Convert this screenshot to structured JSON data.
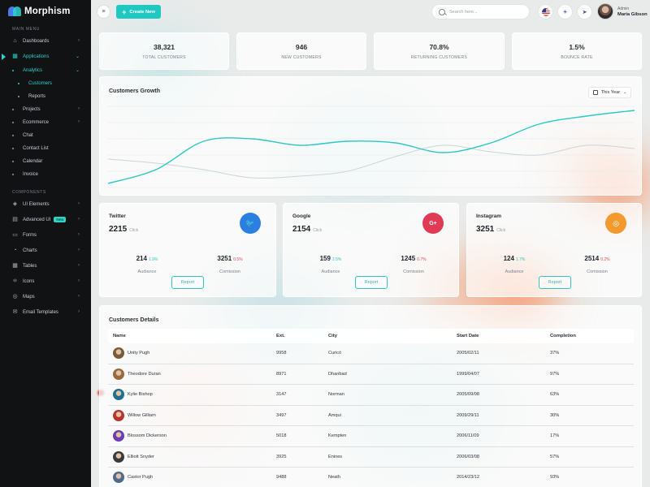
{
  "app": {
    "name": "Morphism"
  },
  "sidebar": {
    "sections": {
      "main": "MAIN MENU",
      "components": "COMPONENTS"
    },
    "items": [
      {
        "label": "Dashboards",
        "icon": "home-icon"
      },
      {
        "label": "Applications",
        "icon": "grid-icon"
      },
      {
        "label": "Projects"
      },
      {
        "label": "Ecommerce"
      },
      {
        "label": "Chat"
      },
      {
        "label": "Contact List"
      },
      {
        "label": "Calendar"
      },
      {
        "label": "Invoice"
      }
    ],
    "analytics": {
      "label": "Analytics",
      "sub": [
        "Customers",
        "Reports"
      ]
    },
    "components": [
      {
        "label": "UI Elements",
        "icon": "layers-icon"
      },
      {
        "label": "Advanced UI",
        "icon": "archive-icon",
        "badge": "New"
      },
      {
        "label": "Forms",
        "icon": "form-icon"
      },
      {
        "label": "Charts",
        "icon": "chart-icon"
      },
      {
        "label": "Tables",
        "icon": "table-icon"
      },
      {
        "label": "Icons",
        "icon": "atom-icon"
      },
      {
        "label": "Maps",
        "icon": "map-icon"
      },
      {
        "label": "Email Templates",
        "icon": "mail-icon"
      }
    ]
  },
  "topbar": {
    "create_label": "Create New",
    "search_placeholder": "Search here...",
    "user_role": "Admin",
    "user_name": "Maria Gibson"
  },
  "stats": [
    {
      "value": "38,321",
      "label": "TOTAL CUSTOMERS"
    },
    {
      "value": "946",
      "label": "NEW CUSTOMERS"
    },
    {
      "value": "70.8%",
      "label": "RETURNING CUSTOMERS"
    },
    {
      "value": "1.5%",
      "label": "BOUNCE RATE"
    }
  ],
  "growth": {
    "title": "Customers Growth",
    "period": "This Year",
    "colors": {
      "primary": "#2ec8c4",
      "secondary": "#c9d6d5"
    }
  },
  "chart_data": {
    "type": "line",
    "title": "Customers Growth",
    "x": [
      0,
      1,
      2,
      3,
      4,
      5,
      6,
      7,
      8,
      9,
      10,
      11
    ],
    "series": [
      {
        "values": [
          5,
          22,
          57,
          60,
          52,
          57,
          55,
          43,
          55,
          78,
          88,
          95
        ]
      },
      {
        "values": [
          35,
          30,
          22,
          12,
          14,
          20,
          38,
          52,
          44,
          40,
          52,
          48
        ]
      }
    ],
    "ylim": [
      0,
      100
    ],
    "grid": true
  },
  "social": [
    {
      "name": "Twitter",
      "value": "2215",
      "unit": "Click",
      "icon": "twitter-icon",
      "color": "#2a7fe0",
      "glyph": "🐦",
      "audiance": "214",
      "audiance_pct": "1.9%",
      "comission": "3251",
      "comission_pct": "0.5%",
      "aud_label": "Audiance",
      "com_label": "Comission",
      "report": "Report"
    },
    {
      "name": "Google",
      "value": "2154",
      "unit": "Click",
      "icon": "google-plus-icon",
      "color": "#e03a55",
      "glyph": "G+",
      "audiance": "159",
      "audiance_pct": "2.5%",
      "comission": "1245",
      "comission_pct": "0.7%",
      "aud_label": "Audiance",
      "com_label": "Comission",
      "report": "Report"
    },
    {
      "name": "Instagram",
      "value": "3251",
      "unit": "Click",
      "icon": "instagram-icon",
      "color": "#f39a2e",
      "glyph": "◎",
      "audiance": "124",
      "audiance_pct": "1.7%",
      "comission": "2514",
      "comission_pct": "0.2%",
      "aud_label": "Audiance",
      "com_label": "Comission",
      "report": "Report"
    }
  ],
  "table": {
    "title": "Customers Details",
    "headers": [
      "Name",
      "Ext.",
      "City",
      "Start Date",
      "Completion"
    ],
    "rows": [
      {
        "name": "Unity Pugh",
        "ext": "9958",
        "city": "Curicó",
        "date": "2005/02/11",
        "completion": "37%",
        "avatar": "#7a5a3a"
      },
      {
        "name": "Theodore Duran",
        "ext": "8971",
        "city": "Dhanbad",
        "date": "1999/04/07",
        "completion": "97%",
        "avatar": "#9a6a3e"
      },
      {
        "name": "Kylie Bishop",
        "ext": "3147",
        "city": "Norman",
        "date": "2005/09/08",
        "completion": "63%",
        "avatar": "#1f6f8f"
      },
      {
        "name": "Willow Gilliam",
        "ext": "3497",
        "city": "Amqui",
        "date": "2009/29/11",
        "completion": "30%",
        "avatar": "#b8342f"
      },
      {
        "name": "Blossom Dickerson",
        "ext": "5018",
        "city": "Kempten",
        "date": "2006/11/09",
        "completion": "17%",
        "avatar": "#6a3fb0"
      },
      {
        "name": "Elliott Snyder",
        "ext": "3925",
        "city": "Enines",
        "date": "2006/03/08",
        "completion": "57%",
        "avatar": "#3a3a3a"
      },
      {
        "name": "Castor Pugh",
        "ext": "9488",
        "city": "Neath",
        "date": "2014/23/12",
        "completion": "93%",
        "avatar": "#4f6a8a"
      }
    ]
  }
}
